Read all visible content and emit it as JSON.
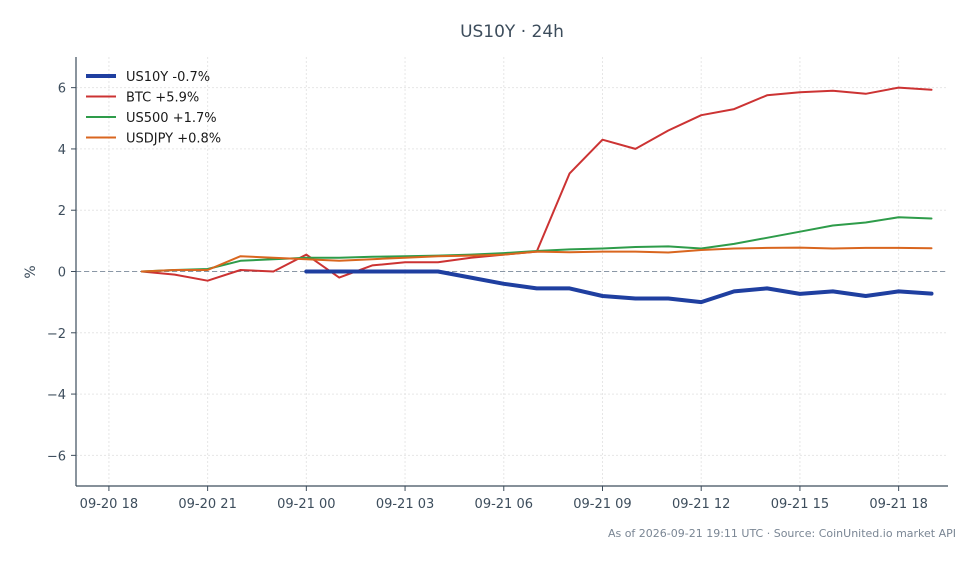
{
  "chart_data": {
    "type": "line",
    "title": "US10Y · 24h",
    "xlabel": "",
    "ylabel": "%",
    "x_ticks": [
      "09-20 18",
      "09-20 21",
      "09-21 00",
      "09-21 03",
      "09-21 06",
      "09-21 09",
      "09-21 12",
      "09-21 15",
      "09-21 18"
    ],
    "x_range_hours": [
      -1,
      25.5
    ],
    "y_ticks": [
      -6,
      -4,
      -2,
      0,
      2,
      4,
      6
    ],
    "ylim": [
      -7,
      7
    ],
    "grid": true,
    "zero_line": true,
    "legend_position": "top-left",
    "series": [
      {
        "name": "US10Y -0.7%",
        "color": "#1f3fa0",
        "width": 4,
        "x": [
          6,
          7,
          8,
          9,
          10,
          11,
          12,
          13,
          14,
          15,
          16,
          17,
          18,
          19,
          20,
          21,
          22,
          23,
          24,
          25
        ],
        "values": [
          0.0,
          0.0,
          0.0,
          0.0,
          0.0,
          -0.2,
          -0.4,
          -0.55,
          -0.55,
          -0.8,
          -0.88,
          -0.88,
          -1.0,
          -0.65,
          -0.55,
          -0.73,
          -0.65,
          -0.8,
          -0.65,
          -0.72
        ]
      },
      {
        "name": "BTC +5.9%",
        "color": "#cc3333",
        "width": 2,
        "x": [
          1,
          2,
          3,
          4,
          5,
          6,
          7,
          8,
          9,
          10,
          11,
          12,
          13,
          14,
          15,
          16,
          17,
          18,
          19,
          20,
          21,
          22,
          23,
          24,
          25,
          26
        ],
        "values": [
          0.0,
          -0.1,
          -0.3,
          0.05,
          0.0,
          0.55,
          -0.2,
          0.2,
          0.3,
          0.3,
          0.45,
          0.55,
          0.65,
          3.2,
          4.3,
          4.0,
          4.6,
          5.1,
          5.3,
          5.75,
          5.85,
          5.9,
          5.8,
          6.0,
          5.93,
          null
        ]
      },
      {
        "name": "US500 +1.7%",
        "color": "#2e9c4a",
        "width": 2,
        "x": [
          1,
          2,
          3,
          4,
          5,
          6,
          7,
          8,
          9,
          10,
          11,
          12,
          13,
          14,
          15,
          16,
          17,
          18,
          19,
          20,
          21,
          22,
          23,
          24,
          25
        ],
        "values": [
          0.0,
          0.05,
          0.08,
          0.35,
          0.4,
          0.45,
          0.45,
          0.48,
          0.5,
          0.52,
          0.55,
          0.6,
          0.67,
          0.72,
          0.75,
          0.8,
          0.82,
          0.75,
          0.9,
          1.1,
          1.3,
          1.5,
          1.6,
          1.77,
          1.73
        ]
      },
      {
        "name": "USDJPY +0.8%",
        "color": "#d9661f",
        "width": 2,
        "x": [
          1,
          2,
          3,
          4,
          5,
          6,
          7,
          8,
          9,
          10,
          11,
          12,
          13,
          14,
          15,
          16,
          17,
          18,
          19,
          20,
          21,
          22,
          23,
          24,
          25
        ],
        "values": [
          0.0,
          0.05,
          0.05,
          0.5,
          0.45,
          0.4,
          0.35,
          0.4,
          0.45,
          0.5,
          0.52,
          0.55,
          0.65,
          0.63,
          0.65,
          0.65,
          0.62,
          0.7,
          0.75,
          0.77,
          0.78,
          0.75,
          0.77,
          0.77,
          0.76
        ]
      }
    ],
    "footer": "As of 2026-09-21 19:11 UTC · Source: CoinUnited.io market API"
  }
}
